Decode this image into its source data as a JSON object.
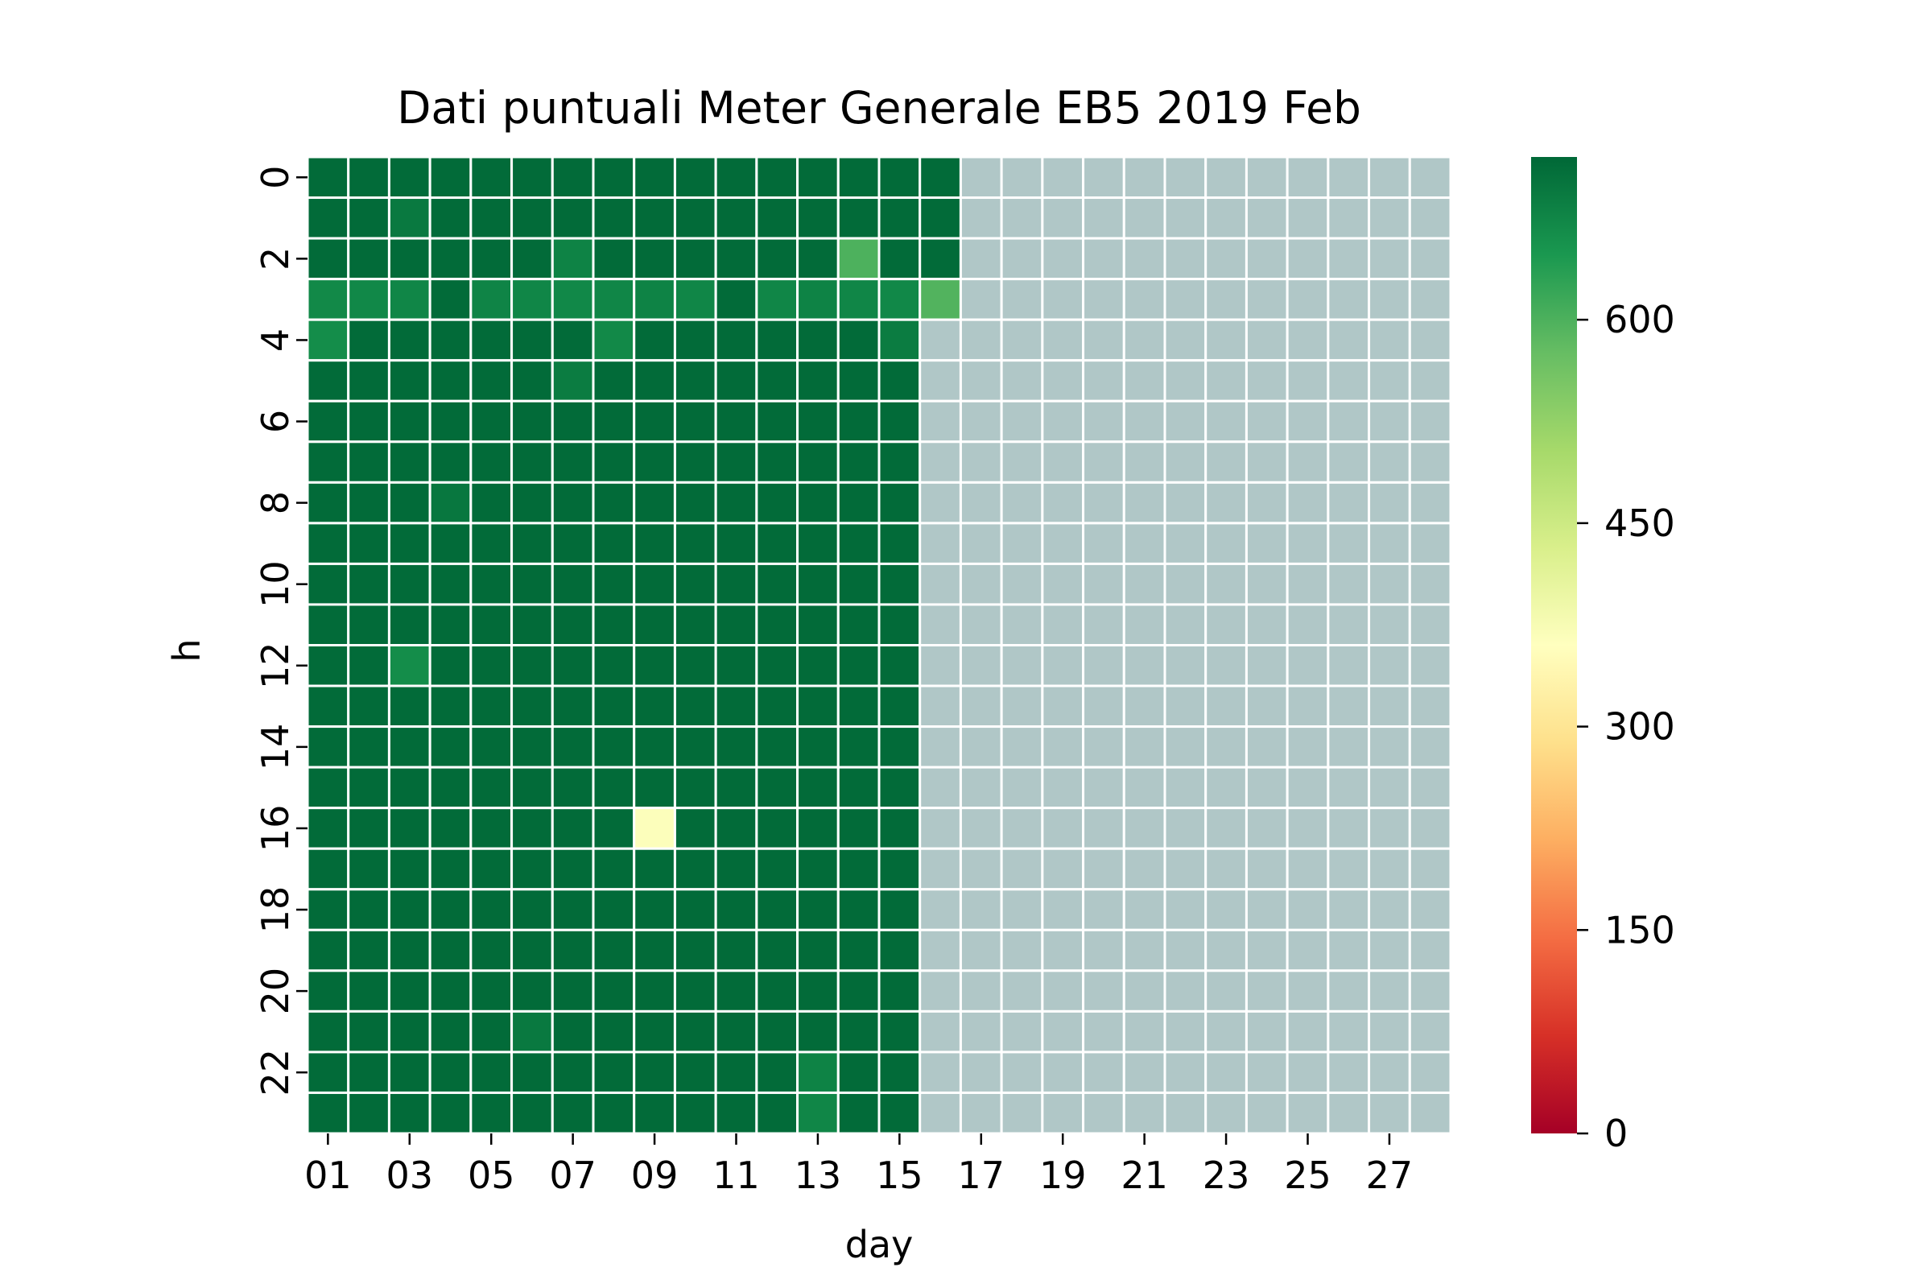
{
  "chart_data": {
    "type": "heatmap",
    "title": "Dati puntuali Meter Generale EB5 2019 Feb",
    "xlabel": "day",
    "ylabel": "h",
    "x_categories": [
      "01",
      "02",
      "03",
      "04",
      "05",
      "06",
      "07",
      "08",
      "09",
      "10",
      "11",
      "12",
      "13",
      "14",
      "15",
      "16",
      "17",
      "18",
      "19",
      "20",
      "21",
      "22",
      "23",
      "24",
      "25",
      "26",
      "27",
      "28"
    ],
    "x_tick_labels": [
      "01",
      "03",
      "05",
      "07",
      "09",
      "11",
      "13",
      "15",
      "17",
      "19",
      "21",
      "23",
      "25",
      "27"
    ],
    "y_categories": [
      0,
      1,
      2,
      3,
      4,
      5,
      6,
      7,
      8,
      9,
      10,
      11,
      12,
      13,
      14,
      15,
      16,
      17,
      18,
      19,
      20,
      21,
      22,
      23
    ],
    "y_tick_labels": [
      "0",
      "2",
      "4",
      "6",
      "8",
      "10",
      "12",
      "14",
      "16",
      "18",
      "20",
      "22"
    ],
    "missing_color": "#b0c7c7",
    "cell_line_color": "#ffffff",
    "colorscale": {
      "name": "RdYlGn",
      "vmin": 0,
      "vmax": 720,
      "ticks": [
        0,
        150,
        300,
        450,
        600
      ],
      "stops": [
        [
          0.0,
          "#a50026"
        ],
        [
          0.1,
          "#d73027"
        ],
        [
          0.2,
          "#f46d43"
        ],
        [
          0.3,
          "#fdae61"
        ],
        [
          0.4,
          "#fee08b"
        ],
        [
          0.5,
          "#ffffbf"
        ],
        [
          0.6,
          "#d9ef8b"
        ],
        [
          0.7,
          "#a6d96a"
        ],
        [
          0.8,
          "#66bd63"
        ],
        [
          0.9,
          "#1a9850"
        ],
        [
          1.0,
          "#006837"
        ]
      ]
    },
    "default_value": 715,
    "days_with_data": 16,
    "day16_hours_with_data": [
      0,
      1,
      2,
      3
    ],
    "cell_overrides": [
      {
        "h": 1,
        "day": "03",
        "value": 695
      },
      {
        "h": 2,
        "day": "07",
        "value": 680
      },
      {
        "h": 2,
        "day": "14",
        "value": 600
      },
      {
        "h": 3,
        "day": "01",
        "value": 670
      },
      {
        "h": 3,
        "day": "02",
        "value": 672
      },
      {
        "h": 3,
        "day": "03",
        "value": 675
      },
      {
        "h": 3,
        "day": "05",
        "value": 678
      },
      {
        "h": 3,
        "day": "06",
        "value": 675
      },
      {
        "h": 3,
        "day": "07",
        "value": 672
      },
      {
        "h": 3,
        "day": "08",
        "value": 675
      },
      {
        "h": 3,
        "day": "09",
        "value": 680
      },
      {
        "h": 3,
        "day": "10",
        "value": 675
      },
      {
        "h": 3,
        "day": "12",
        "value": 675
      },
      {
        "h": 3,
        "day": "13",
        "value": 680
      },
      {
        "h": 3,
        "day": "14",
        "value": 675
      },
      {
        "h": 3,
        "day": "15",
        "value": 672
      },
      {
        "h": 3,
        "day": "16",
        "value": 595
      },
      {
        "h": 4,
        "day": "01",
        "value": 665
      },
      {
        "h": 4,
        "day": "08",
        "value": 670
      },
      {
        "h": 4,
        "day": "15",
        "value": 690
      },
      {
        "h": 5,
        "day": "07",
        "value": 690
      },
      {
        "h": 8,
        "day": "04",
        "value": 698
      },
      {
        "h": 12,
        "day": "03",
        "value": 665
      },
      {
        "h": 16,
        "day": "09",
        "value": 365
      },
      {
        "h": 21,
        "day": "06",
        "value": 695
      },
      {
        "h": 22,
        "day": "13",
        "value": 680
      },
      {
        "h": 23,
        "day": "13",
        "value": 675
      }
    ]
  }
}
